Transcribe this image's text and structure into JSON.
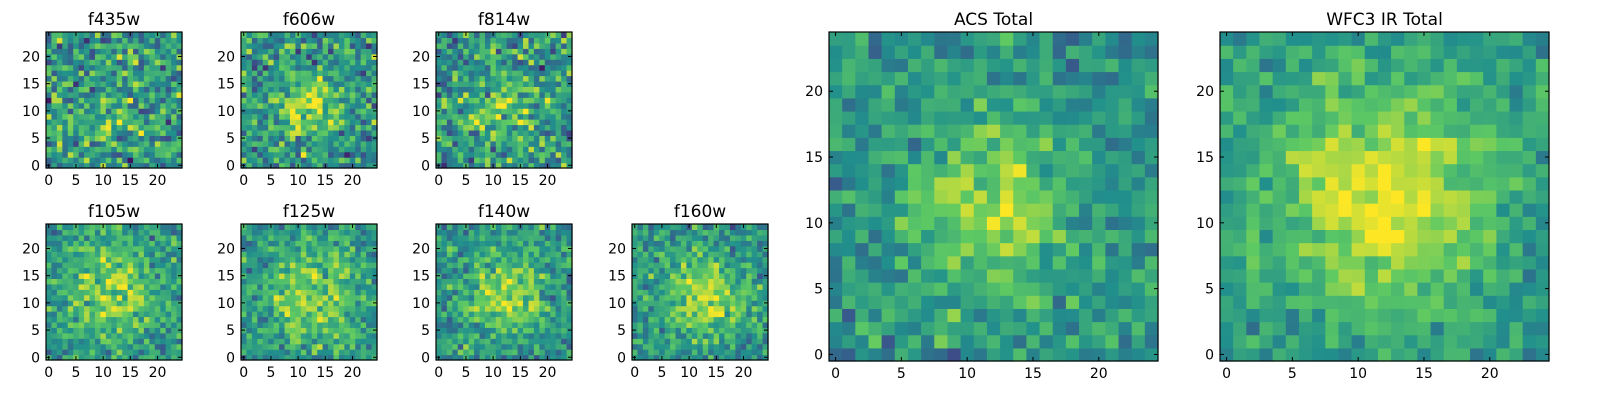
{
  "figure": {
    "background": "#ffffff"
  },
  "colormap": {
    "name": "viridis",
    "stops": [
      "#440154",
      "#3b528b",
      "#21908c",
      "#5dc963",
      "#fde725"
    ]
  },
  "chart_data": [
    {
      "type": "heatmap",
      "title": "f435w",
      "grid_size": 25,
      "xlim": [
        0,
        24
      ],
      "ylim": [
        0,
        24
      ],
      "xticks": [
        "0",
        "5",
        "10",
        "15",
        "20"
      ],
      "yticks": [
        "0",
        "5",
        "10",
        "15",
        "20"
      ],
      "noise_level": 0.9,
      "blob": {
        "center": [
          12,
          10
        ],
        "sigma": 6,
        "amplitude": 0.1
      },
      "seed": 11
    },
    {
      "type": "heatmap",
      "title": "f606w",
      "grid_size": 25,
      "xlim": [
        0,
        24
      ],
      "ylim": [
        0,
        24
      ],
      "xticks": [
        "0",
        "5",
        "10",
        "15",
        "20"
      ],
      "yticks": [
        "0",
        "5",
        "10",
        "15",
        "20"
      ],
      "noise_level": 0.8,
      "blob": {
        "center": [
          12,
          11
        ],
        "sigma": 4,
        "amplitude": 0.35
      },
      "seed": 23
    },
    {
      "type": "heatmap",
      "title": "f814w",
      "grid_size": 25,
      "xlim": [
        0,
        24
      ],
      "ylim": [
        0,
        24
      ],
      "xticks": [
        "0",
        "5",
        "10",
        "15",
        "20"
      ],
      "yticks": [
        "0",
        "5",
        "10",
        "15",
        "20"
      ],
      "noise_level": 0.85,
      "blob": {
        "center": [
          12,
          11
        ],
        "sigma": 5,
        "amplitude": 0.2
      },
      "seed": 37
    },
    {
      "type": "heatmap",
      "title": "f105w",
      "grid_size": 25,
      "xlim": [
        0,
        24
      ],
      "ylim": [
        0,
        24
      ],
      "xticks": [
        "0",
        "5",
        "10",
        "15",
        "20"
      ],
      "yticks": [
        "0",
        "5",
        "10",
        "15",
        "20"
      ],
      "noise_level": 0.6,
      "blob": {
        "center": [
          12,
          12
        ],
        "sigma": 6,
        "amplitude": 0.3
      },
      "seed": 41
    },
    {
      "type": "heatmap",
      "title": "f125w",
      "grid_size": 25,
      "xlim": [
        0,
        24
      ],
      "ylim": [
        0,
        24
      ],
      "xticks": [
        "0",
        "5",
        "10",
        "15",
        "20"
      ],
      "yticks": [
        "0",
        "5",
        "10",
        "15",
        "20"
      ],
      "noise_level": 0.6,
      "blob": {
        "center": [
          12,
          11
        ],
        "sigma": 6,
        "amplitude": 0.3
      },
      "seed": 53
    },
    {
      "type": "heatmap",
      "title": "f140w",
      "grid_size": 25,
      "xlim": [
        0,
        24
      ],
      "ylim": [
        0,
        24
      ],
      "xticks": [
        "0",
        "5",
        "10",
        "15",
        "20"
      ],
      "yticks": [
        "0",
        "5",
        "10",
        "15",
        "20"
      ],
      "noise_level": 0.6,
      "blob": {
        "center": [
          12,
          12
        ],
        "sigma": 5,
        "amplitude": 0.35
      },
      "seed": 67
    },
    {
      "type": "heatmap",
      "title": "f160w",
      "grid_size": 25,
      "xlim": [
        0,
        24
      ],
      "ylim": [
        0,
        24
      ],
      "xticks": [
        "0",
        "5",
        "10",
        "15",
        "20"
      ],
      "yticks": [
        "0",
        "5",
        "10",
        "15",
        "20"
      ],
      "noise_level": 0.6,
      "blob": {
        "center": [
          13,
          11
        ],
        "sigma": 5,
        "amplitude": 0.35
      },
      "seed": 79
    },
    {
      "type": "heatmap",
      "title": "ACS Total",
      "grid_size": 25,
      "xlim": [
        0,
        24
      ],
      "ylim": [
        0,
        24
      ],
      "xticks": [
        "0",
        "5",
        "10",
        "15",
        "20"
      ],
      "yticks": [
        "0",
        "5",
        "10",
        "15",
        "20"
      ],
      "noise_level": 0.5,
      "blob": {
        "center": [
          12,
          11
        ],
        "sigma": 4,
        "amplitude": 0.35
      },
      "seed": 97
    },
    {
      "type": "heatmap",
      "title": "WFC3 IR Total",
      "grid_size": 25,
      "xlim": [
        0,
        24
      ],
      "ylim": [
        0,
        24
      ],
      "xticks": [
        "0",
        "5",
        "10",
        "15",
        "20"
      ],
      "yticks": [
        "0",
        "5",
        "10",
        "15",
        "20"
      ],
      "noise_level": 0.4,
      "blob": {
        "center": [
          12,
          12
        ],
        "sigma": 6,
        "amplitude": 0.45
      },
      "seed": 131
    }
  ]
}
